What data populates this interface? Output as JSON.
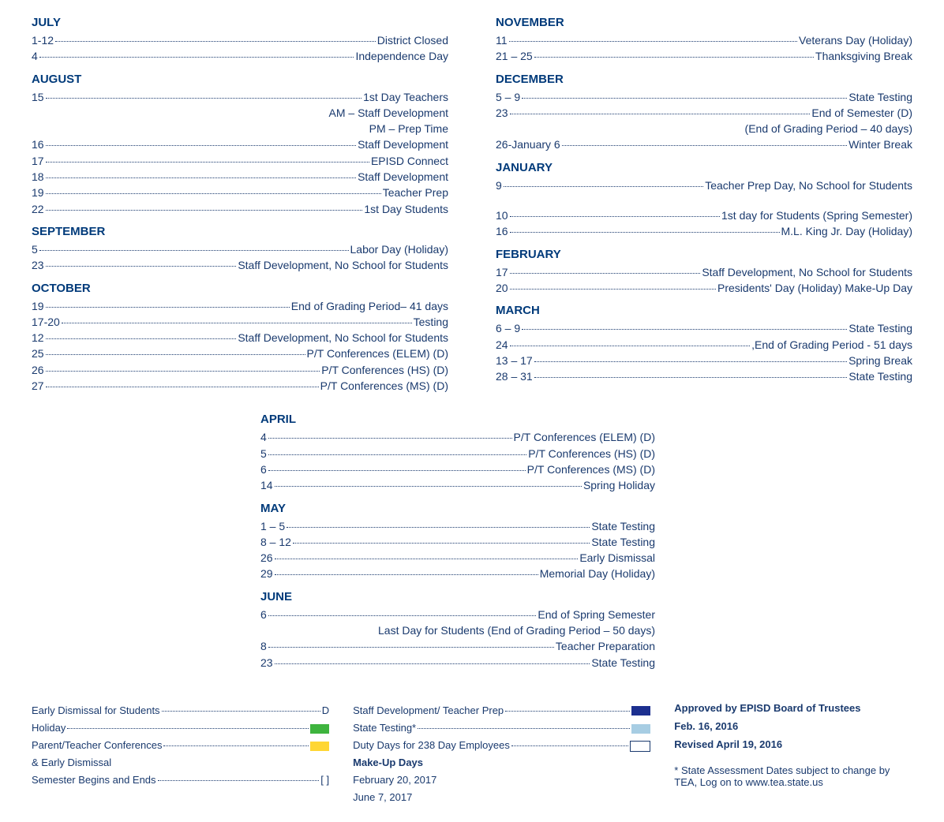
{
  "colors": {
    "text": "#1a3a6e",
    "header": "#003a7a",
    "green": "#3eb43e",
    "yellow": "#ffd633",
    "darkblue": "#1c2f8f",
    "lightblue": "#a7cde3"
  },
  "left_months": [
    {
      "name": "JULY",
      "entries": [
        {
          "date": "1-12",
          "desc": "District Closed"
        },
        {
          "date": "4",
          "desc": "Independence Day"
        }
      ]
    },
    {
      "name": "AUGUST",
      "entries": [
        {
          "date": "15",
          "desc": "1st Day Teachers"
        },
        {
          "sub": "AM – Staff Development"
        },
        {
          "sub": "PM – Prep Time"
        },
        {
          "date": "16",
          "desc": "Staff  Development"
        },
        {
          "date": "17",
          "desc": "EPISD Connect"
        },
        {
          "date": "18",
          "desc": "Staff  Development"
        },
        {
          "date": "19",
          "desc": "Teacher Prep"
        },
        {
          "date": "22",
          "desc": "1st Day Students"
        }
      ]
    },
    {
      "name": "SEPTEMBER",
      "entries": [
        {
          "date": "5",
          "desc": "Labor Day (Holiday)"
        },
        {
          "date": "23",
          "desc": "Staff Development, No School for Students"
        }
      ]
    },
    {
      "name": "OCTOBER",
      "entries": [
        {
          "date": "19",
          "desc": "End of Grading Period– 41 days"
        },
        {
          "date": "17-20",
          "desc": "Testing"
        },
        {
          "date": "12",
          "desc": "Staff Development, No School for Students"
        },
        {
          "date": "25",
          "desc": "P/T Conferences (ELEM) (D)"
        },
        {
          "date": "26",
          "desc": "P/T Conferences (HS) (D)"
        },
        {
          "date": "27",
          "desc": "P/T Conferences  (MS)  (D)"
        }
      ]
    }
  ],
  "right_months": [
    {
      "name": "NOVEMBER",
      "entries": [
        {
          "date": "11",
          "desc": "Veterans Day (Holiday)"
        },
        {
          "date": "21 – 25",
          "desc": "Thanksgiving Break"
        }
      ]
    },
    {
      "name": "DECEMBER",
      "entries": [
        {
          "date": "5 – 9",
          "desc": "State Testing"
        },
        {
          "date": "23",
          "desc": "End of Semester (D)"
        },
        {
          "sub": "(End of Grading Period – 40 days)"
        },
        {
          "date": "26-January 6",
          "desc": "Winter Break"
        }
      ]
    },
    {
      "name": "JANUARY",
      "entries": [
        {
          "date": "9",
          "desc": "Teacher Prep Day, No School for Students"
        },
        {
          "gap": true
        },
        {
          "date": "10",
          "desc": "1st day for Students (Spring Semester)"
        },
        {
          "date": "16",
          "desc": "M.L. King Jr. Day (Holiday)"
        }
      ]
    },
    {
      "name": "FEBRUARY",
      "entries": [
        {
          "date": "17",
          "desc": "Staff Development, No School for Students"
        },
        {
          "date": "20",
          "desc": "Presidents' Day (Holiday) Make-Up Day"
        }
      ]
    },
    {
      "name": "MARCH",
      "entries": [
        {
          "date": "6 – 9",
          "desc": "State Testing"
        },
        {
          "date": "24",
          "desc": ",End of Grading Period - 51 days"
        },
        {
          "date": "13 – 17",
          "desc": "Spring Break"
        },
        {
          "date": "28 – 31",
          "desc": "State Testing"
        }
      ]
    }
  ],
  "middle_months": [
    {
      "name": "APRIL",
      "entries": [
        {
          "date": "4",
          "desc": "P/T Conferences  (ELEM)  (D)"
        },
        {
          "date": "5",
          "desc": "P/T Conferences  (HS)  (D)"
        },
        {
          "date": "6",
          "desc": "P/T  Conferences   (MS)   (D)"
        },
        {
          "date": "14",
          "desc": "Spring Holiday"
        }
      ]
    },
    {
      "name": "MAY",
      "entries": [
        {
          "date": "1 – 5",
          "desc": "State Testing"
        },
        {
          "date": "8 – 12",
          "desc": "State Testing"
        },
        {
          "date": "26",
          "desc": "Early Dismissal"
        },
        {
          "date": "29",
          "desc": "Memorial Day (Holiday)"
        }
      ]
    },
    {
      "name": "JUNE",
      "entries": [
        {
          "date": "6",
          "desc": "End of Spring Semester"
        },
        {
          "sub": "Last Day for Students (End of Grading Period – 50 days)"
        },
        {
          "date": "8",
          "desc": "Teacher Preparation"
        },
        {
          "date": "23",
          "desc": "State Testing"
        }
      ]
    }
  ],
  "legend_left": [
    {
      "label": "Early Dismissal for Students",
      "marker_text": "D"
    },
    {
      "label": "Holiday",
      "swatch": "#3eb43e"
    },
    {
      "label": "Parent/Teacher Conferences ",
      "swatch": "#ffd633"
    },
    {
      "plain": "& Early Dismissal"
    },
    {
      "label": "Semester Begins and Ends",
      "marker_text": "[ ]"
    }
  ],
  "legend_mid": [
    {
      "label": "Staff Development/ Teacher Prep",
      "swatch": "#1c2f8f"
    },
    {
      "label": "State Testing*",
      "swatch": "#a7cde3"
    },
    {
      "label": "Duty Days for 238 Day Employees",
      "swatch_outline": true
    },
    {
      "bold": "Make-Up Days"
    },
    {
      "plain": "February 20, 2017"
    },
    {
      "plain": "June 7, 2017"
    }
  ],
  "legend_right": {
    "approved_label": "Approved by EPISD Board of Trustees",
    "approved_date": "Feb. 16, 2016",
    "revised": "Revised April 19, 2016",
    "note": "* State Assessment Dates subject to change by TEA, Log on to www.tea.state.us"
  }
}
